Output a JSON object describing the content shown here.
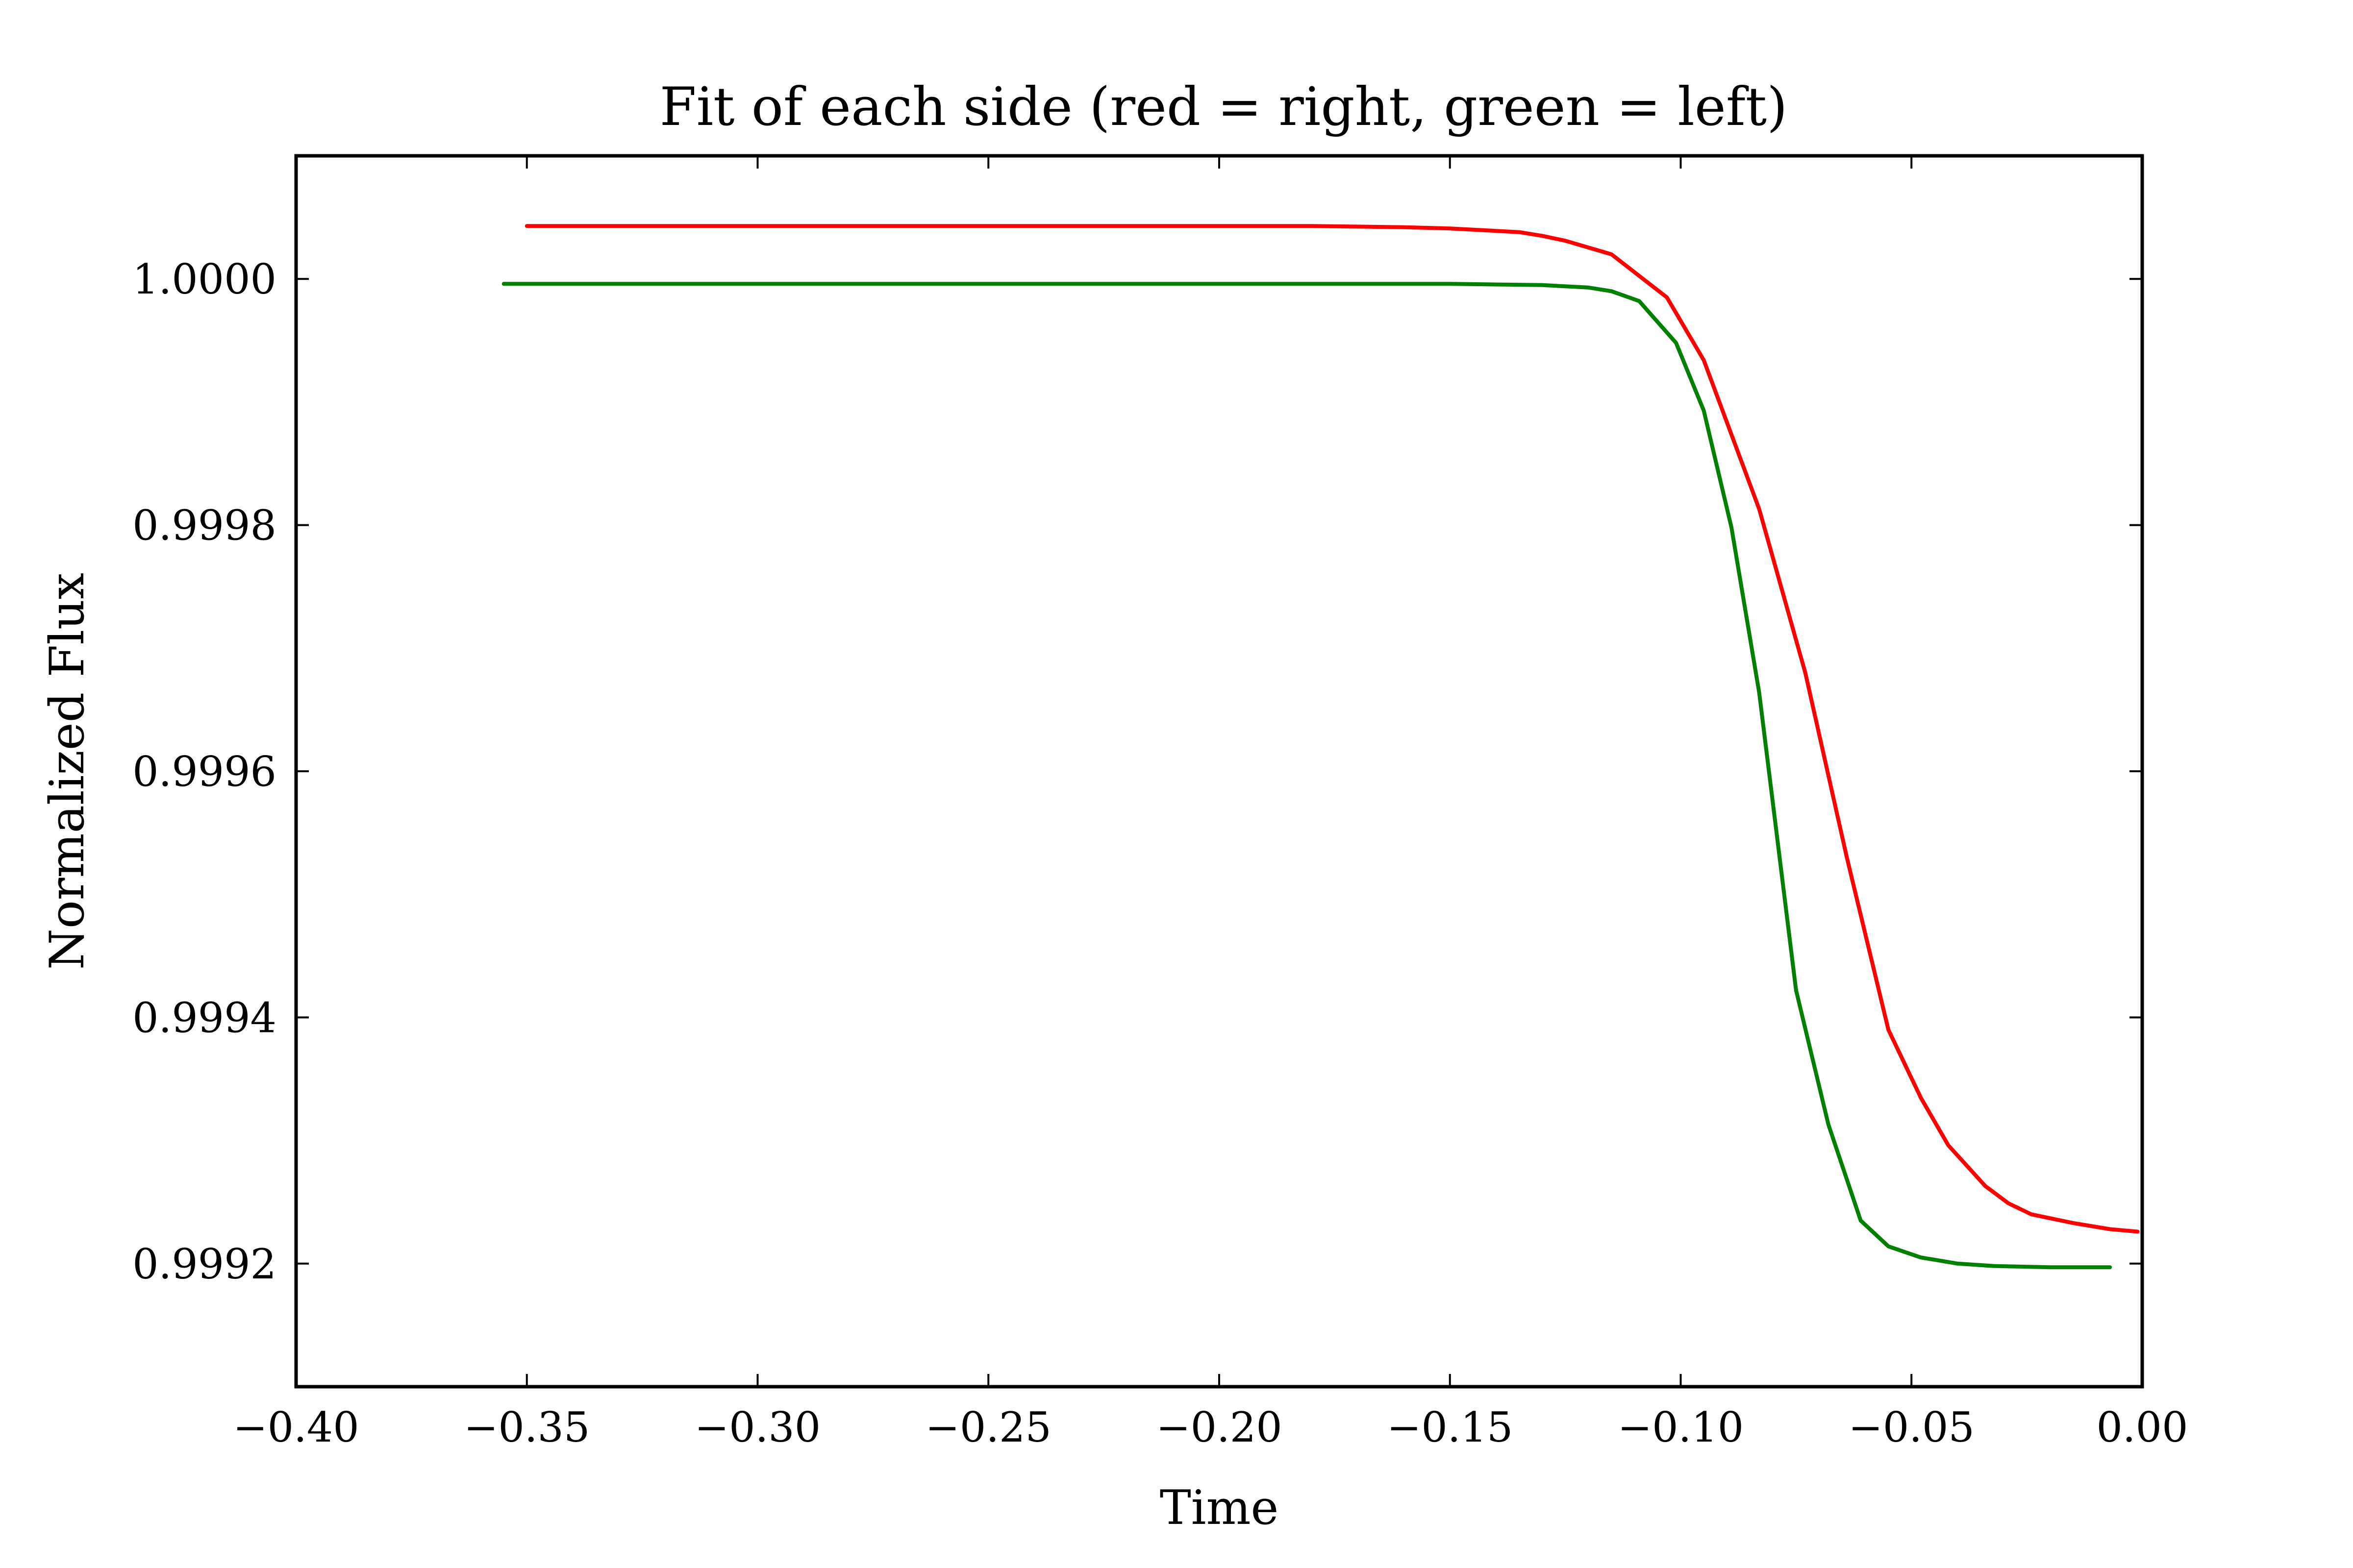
{
  "chart_data": {
    "type": "line",
    "title": "Fit of each side (red = right, green = left)",
    "xlabel": "Time",
    "ylabel": "Normalized Flux",
    "xlim": [
      -0.4,
      0.0
    ],
    "ylim": [
      0.9991,
      1.0001
    ],
    "x_ticks": [
      -0.4,
      -0.35,
      -0.3,
      -0.25,
      -0.2,
      -0.15,
      -0.1,
      -0.05,
      0.0
    ],
    "x_tick_labels": [
      "−0.40",
      "−0.35",
      "−0.30",
      "−0.25",
      "−0.20",
      "−0.15",
      "−0.10",
      "−0.05",
      "0.00"
    ],
    "y_ticks": [
      0.9992,
      0.9994,
      0.9996,
      0.9998,
      1.0
    ],
    "y_tick_labels": [
      "0.9992",
      "0.9994",
      "0.9996",
      "0.9998",
      "1.0000"
    ],
    "grid": false,
    "legend": "none",
    "series": [
      {
        "color": "#ff0000",
        "x": [
          -0.35,
          -0.3,
          -0.25,
          -0.2,
          -0.18,
          -0.16,
          -0.15,
          -0.14,
          -0.135,
          -0.13,
          -0.125,
          -0.115,
          -0.103,
          -0.095,
          -0.083,
          -0.073,
          -0.064,
          -0.055,
          -0.048,
          -0.042,
          -0.034,
          -0.029,
          -0.024,
          -0.015,
          -0.007,
          -0.001
        ],
        "y": [
          1.000043,
          1.000043,
          1.000043,
          1.000043,
          1.000043,
          1.000042,
          1.000041,
          1.000039,
          1.000038,
          1.000035,
          1.000031,
          1.00002,
          0.999985,
          0.999934,
          0.999813,
          0.99968,
          0.99953,
          0.99939,
          0.999335,
          0.999296,
          0.999263,
          0.999249,
          0.99924,
          0.999233,
          0.999228,
          0.999226
        ]
      },
      {
        "color": "#008000",
        "x": [
          -0.355,
          -0.3,
          -0.25,
          -0.2,
          -0.15,
          -0.13,
          -0.12,
          -0.115,
          -0.109,
          -0.101,
          -0.095,
          -0.089,
          -0.083,
          -0.075,
          -0.068,
          -0.061,
          -0.055,
          -0.048,
          -0.04,
          -0.032,
          -0.02,
          -0.007
        ],
        "y": [
          0.999996,
          0.999996,
          0.999996,
          0.999996,
          0.999996,
          0.999995,
          0.999993,
          0.99999,
          0.999982,
          0.999948,
          0.999893,
          0.999798,
          0.999664,
          0.999422,
          0.999313,
          0.999235,
          0.999214,
          0.999205,
          0.9992,
          0.999198,
          0.999197,
          0.999197
        ]
      }
    ]
  }
}
